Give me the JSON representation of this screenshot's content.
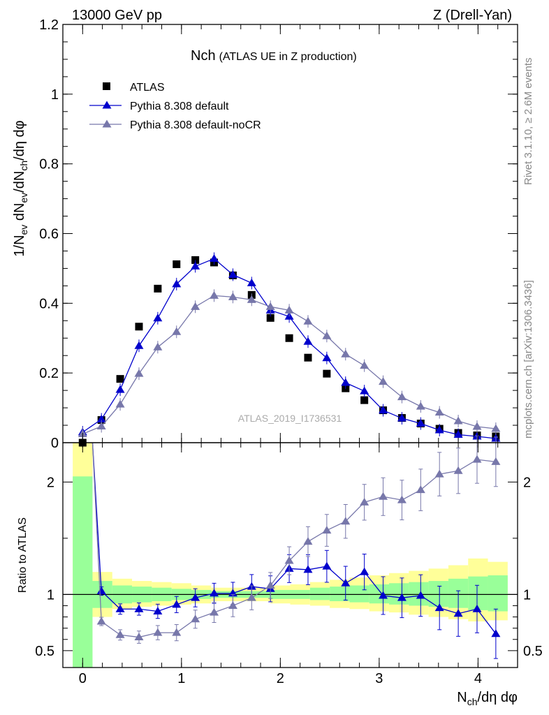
{
  "header": {
    "left": "13000 GeV pp",
    "right": "Z (Drell-Yan)"
  },
  "side_labels": {
    "upper": "Rivet 3.1.10, ≥ 2.6M events",
    "lower": "mcplots.cern.ch [arXiv:1306.3436]"
  },
  "chart_data": [
    {
      "type": "scatter",
      "title": "Nch",
      "subtitle": "(ATLAS UE in Z production)",
      "ylabel": "1/N_ev dN_ev/dN_ch/dη dφ",
      "ylabel_parts": {
        "a": "1/N",
        "b": "ev",
        "c": " dN",
        "d": "ev",
        "e": "/dN",
        "f": "ch",
        "g": "/dη dφ"
      },
      "xlim": [
        -0.2,
        4.4
      ],
      "ylim": [
        0,
        1.2
      ],
      "yticks": [
        0,
        0.2,
        0.4,
        0.6,
        0.8,
        1,
        1.2
      ],
      "ytick_labels": [
        "0",
        "0.2",
        "0.4",
        "0.6",
        "0.8",
        "1",
        "1.2"
      ],
      "watermark": "ATLAS_2019_I1736531",
      "legend": [
        "ATLAS",
        "Pythia 8.308 default",
        "Pythia 8.308 default-noCR"
      ],
      "x": [
        0,
        0.19,
        0.38,
        0.57,
        0.76,
        0.95,
        1.14,
        1.33,
        1.52,
        1.71,
        1.9,
        2.09,
        2.28,
        2.47,
        2.66,
        2.85,
        3.04,
        3.23,
        3.42,
        3.61,
        3.8,
        3.99,
        4.18
      ],
      "series": [
        {
          "name": "ATLAS",
          "color": "#000000",
          "marker": "square",
          "values": [
            0.0,
            0.065,
            0.183,
            0.333,
            0.442,
            0.512,
            0.524,
            0.517,
            0.48,
            0.424,
            0.358,
            0.3,
            0.244,
            0.198,
            0.156,
            0.122,
            0.093,
            0.071,
            0.055,
            0.04,
            0.028,
            0.021,
            0.018
          ]
        },
        {
          "name": "Pythia 8.308 default",
          "color": "#0000cc",
          "marker": "triangle",
          "values": [
            0.03,
            0.067,
            0.152,
            0.278,
            0.357,
            0.455,
            0.506,
            0.528,
            0.482,
            0.458,
            0.38,
            0.362,
            0.29,
            0.243,
            0.172,
            0.148,
            0.093,
            0.07,
            0.055,
            0.036,
            0.023,
            0.018,
            0.012
          ]
        },
        {
          "name": "Pythia 8.308 default-noCR",
          "color": "#7777aa",
          "marker": "triangle",
          "values": [
            0.025,
            0.047,
            0.11,
            0.198,
            0.274,
            0.318,
            0.39,
            0.422,
            0.418,
            0.41,
            0.39,
            0.38,
            0.348,
            0.306,
            0.254,
            0.221,
            0.175,
            0.131,
            0.104,
            0.087,
            0.062,
            0.046,
            0.04
          ]
        }
      ]
    },
    {
      "type": "scatter",
      "ylabel": "Ratio to ATLAS",
      "xlabel": "N_ch/dη dφ",
      "xlabel_parts": {
        "a": "N",
        "b": "ch",
        "c": "/dη dφ"
      },
      "xlim": [
        -0.2,
        4.4
      ],
      "ylim": [
        0.35,
        2.35
      ],
      "xticks": [
        0,
        1,
        2,
        3,
        4
      ],
      "xtick_labels": [
        "0",
        "1",
        "2",
        "3",
        "4"
      ],
      "yticks": [
        0.5,
        1,
        2
      ],
      "ytick_labels": [
        "0.5",
        "1",
        "2"
      ],
      "x": [
        0.19,
        0.38,
        0.57,
        0.76,
        0.95,
        1.14,
        1.33,
        1.52,
        1.71,
        1.9,
        2.09,
        2.28,
        2.47,
        2.66,
        2.85,
        3.04,
        3.23,
        3.42,
        3.61,
        3.8,
        3.99,
        4.18
      ],
      "series": [
        {
          "name": "Pythia 8.308 default",
          "color": "#0000cc",
          "values": [
            1.03,
            0.87,
            0.87,
            0.85,
            0.91,
            0.97,
            1.01,
            1.01,
            1.07,
            1.05,
            1.23,
            1.22,
            1.25,
            1.1,
            1.2,
            0.99,
            0.97,
            0.99,
            0.88,
            0.83,
            0.87,
            0.65
          ]
        },
        {
          "name": "Pythia 8.308 default-noCR",
          "color": "#7777aa",
          "values": [
            0.76,
            0.64,
            0.62,
            0.66,
            0.66,
            0.78,
            0.84,
            0.9,
            0.97,
            1.08,
            1.3,
            1.47,
            1.57,
            1.65,
            1.82,
            1.87,
            1.84,
            1.93,
            2.07,
            2.1,
            2.2,
            2.18
          ]
        }
      ],
      "band_x": [
        -0.1,
        0.1,
        0.3,
        0.5,
        0.7,
        0.9,
        1.1,
        1.3,
        1.5,
        1.7,
        1.9,
        2.1,
        2.3,
        2.5,
        2.7,
        2.9,
        3.1,
        3.3,
        3.5,
        3.7,
        3.9,
        4.1,
        4.3
      ],
      "band_green": [
        [
          0.35,
          2.05
        ],
        [
          0.88,
          1.12
        ],
        [
          0.92,
          1.08
        ],
        [
          0.93,
          1.07
        ],
        [
          0.94,
          1.06
        ],
        [
          0.95,
          1.05
        ],
        [
          0.96,
          1.04
        ],
        [
          0.97,
          1.03
        ],
        [
          0.97,
          1.03
        ],
        [
          0.97,
          1.03
        ],
        [
          0.96,
          1.04
        ],
        [
          0.96,
          1.04
        ],
        [
          0.95,
          1.06
        ],
        [
          0.94,
          1.07
        ],
        [
          0.93,
          1.08
        ],
        [
          0.92,
          1.09
        ],
        [
          0.91,
          1.1
        ],
        [
          0.9,
          1.11
        ],
        [
          0.89,
          1.12
        ],
        [
          0.88,
          1.14
        ],
        [
          0.86,
          1.16
        ],
        [
          0.85,
          1.17
        ]
      ],
      "band_yellow": [
        [
          0.35,
          2.35
        ],
        [
          0.8,
          1.2
        ],
        [
          0.87,
          1.14
        ],
        [
          0.89,
          1.12
        ],
        [
          0.9,
          1.11
        ],
        [
          0.91,
          1.1
        ],
        [
          0.92,
          1.08
        ],
        [
          0.94,
          1.06
        ],
        [
          0.94,
          1.06
        ],
        [
          0.94,
          1.06
        ],
        [
          0.92,
          1.08
        ],
        [
          0.91,
          1.09
        ],
        [
          0.9,
          1.11
        ],
        [
          0.88,
          1.13
        ],
        [
          0.87,
          1.15
        ],
        [
          0.85,
          1.17
        ],
        [
          0.84,
          1.19
        ],
        [
          0.82,
          1.21
        ],
        [
          0.8,
          1.23
        ],
        [
          0.78,
          1.26
        ],
        [
          0.76,
          1.32
        ],
        [
          0.77,
          1.29
        ]
      ]
    }
  ]
}
